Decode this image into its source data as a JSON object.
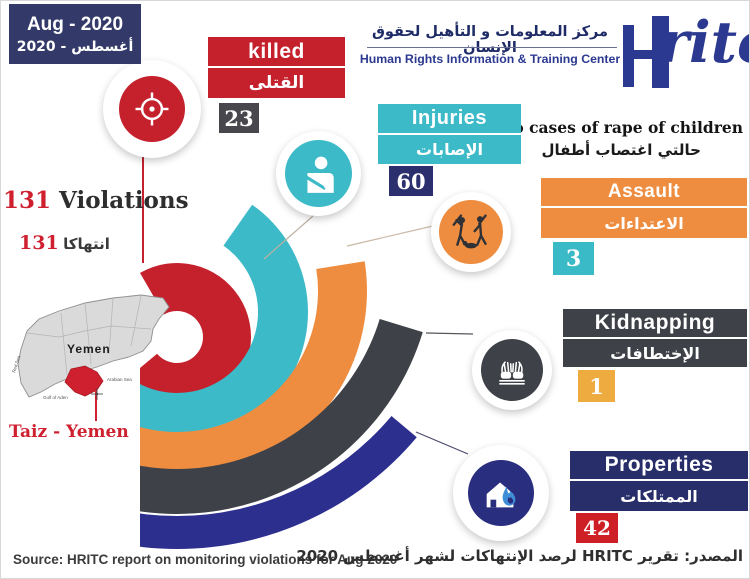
{
  "header_badge": {
    "line_en": "Aug - 2020",
    "line_ar": "أغسطس - 2020",
    "bg": "#333a69"
  },
  "logo": {
    "name_ar": "مركز المعلومات و التأهيل لحقوق الإنسان",
    "name_en": "Human Rights Information & Training Center",
    "script": "ritc",
    "color": "#2b3990"
  },
  "totals": {
    "count": "131",
    "label_en": "Violations",
    "label_ar": "انتهاكا",
    "count_color": "#cf2030",
    "label_color": "#2e2e2e"
  },
  "annotation": {
    "text_en": "Two cases of rape of children",
    "text_ar": "حالتي اغتصاب أطفال"
  },
  "map": {
    "country_label": "Yemen",
    "region_label": "Taiz - Yemen",
    "sea_red": "Red Sea",
    "sea_gulf": "Gulf of Aden",
    "sea_arabian": "Arabian Sea",
    "highlight_color": "#cf2030"
  },
  "categories": [
    {
      "id": "killed",
      "label_en": "killed",
      "label_ar": "القتلى",
      "value": "23",
      "color": "#c5212d",
      "value_box_color": "#47474d",
      "icon": "target-icon"
    },
    {
      "id": "injuries",
      "label_en": "Injuries",
      "label_ar": "الإصابات",
      "value": "60",
      "color": "#3dbac8",
      "value_box_color": "#2b2f6e",
      "icon": "injured-person-icon"
    },
    {
      "id": "assault",
      "label_en": "Assault",
      "label_ar": "الاعتداءات",
      "value": "3",
      "color": "#ee8d40",
      "value_box_color": "#3ab9c6",
      "icon": "assault-icon"
    },
    {
      "id": "kidnapping",
      "label_en": "Kidnapping",
      "label_ar": "الإختطافات",
      "value": "1",
      "color": "#3e4147",
      "value_box_color": "#eeab40",
      "icon": "bound-hands-icon"
    },
    {
      "id": "properties",
      "label_en": "Properties",
      "label_ar": "الممتلكات",
      "value": "42",
      "color": "#272e6a",
      "value_box_color": "#cf1f26",
      "icon": "burning-house-icon"
    }
  ],
  "source": {
    "text_en": "Source: HRITC report on monitoring violations for Aug 2020",
    "text_ar": "المصدر: تقرير HRITC لرصد الإنتهاكات لشهر أغسطس 2020"
  },
  "chart_data": {
    "type": "pie",
    "style": "staggered concentric half-donut arcs opening toward lower-left (decorative radial infographic)",
    "title": "131 Violations - Taiz, Yemen (Aug 2020)",
    "categories": [
      "killed",
      "Injuries",
      "Assault",
      "Kidnapping",
      "Properties"
    ],
    "values": [
      23,
      60,
      3,
      1,
      42
    ],
    "total": 131,
    "colors": [
      "#c5212d",
      "#3dbac8",
      "#ee8d40",
      "#3e4147",
      "#2d2f8f"
    ],
    "ring_order": "inner to outer: killed, Injuries, Assault, Kidnapping, Properties",
    "annotation": "Two cases of rape of children",
    "legend_position": "right"
  }
}
